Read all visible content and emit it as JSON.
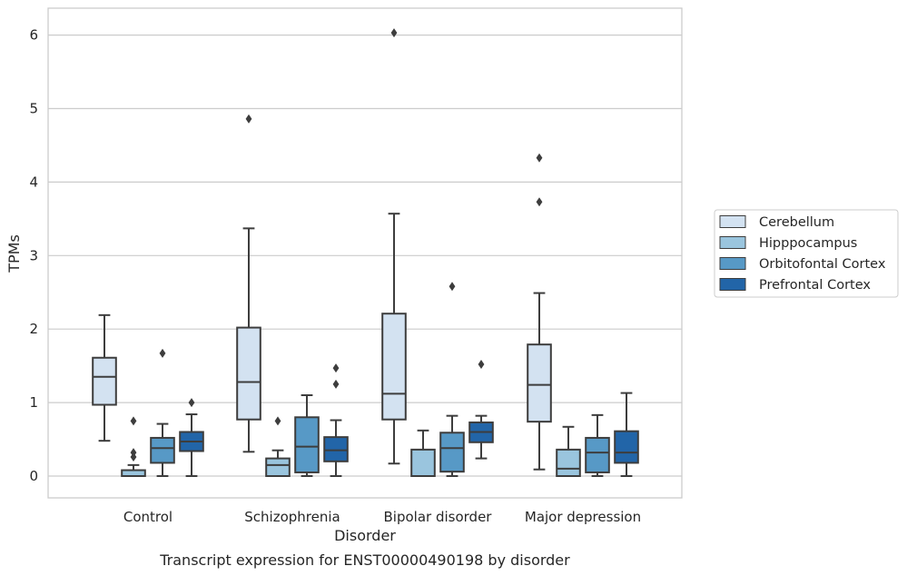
{
  "chart_data": {
    "type": "box",
    "caption": "Transcript expression for ENST00000490198 by disorder",
    "xlabel": "Disorder",
    "ylabel": "TPMs",
    "ylim": [
      -0.3,
      6.35
    ],
    "yticks": [
      0,
      1,
      2,
      3,
      4,
      5,
      6
    ],
    "ytick_labels": [
      "0",
      "1",
      "2",
      "3",
      "4",
      "5",
      "6"
    ],
    "grid": "horizontal",
    "legend_position": "right",
    "categories": [
      "Control",
      "Schizophrenia",
      "Bipolar disorder",
      "Major depression"
    ],
    "series": [
      {
        "name": "Cerebellum",
        "color": "#d3e2f1",
        "boxes": [
          {
            "whislo": 0.48,
            "q1": 0.97,
            "med": 1.35,
            "q3": 1.61,
            "whishi": 2.19,
            "fliers": []
          },
          {
            "whislo": 0.33,
            "q1": 0.77,
            "med": 1.28,
            "q3": 2.02,
            "whishi": 3.37,
            "fliers": [
              4.86
            ]
          },
          {
            "whislo": 0.17,
            "q1": 0.77,
            "med": 1.12,
            "q3": 2.21,
            "whishi": 3.57,
            "fliers": [
              6.03
            ]
          },
          {
            "whislo": 0.09,
            "q1": 0.74,
            "med": 1.24,
            "q3": 1.79,
            "whishi": 2.49,
            "fliers": [
              3.73,
              4.33
            ]
          }
        ]
      },
      {
        "name": "Hipppocampus",
        "color": "#9ac5de",
        "boxes": [
          {
            "whislo": 0.0,
            "q1": 0.0,
            "med": 0.0,
            "q3": 0.08,
            "whishi": 0.15,
            "fliers": [
              0.26,
              0.32,
              0.75
            ]
          },
          {
            "whislo": 0.0,
            "q1": 0.0,
            "med": 0.15,
            "q3": 0.24,
            "whishi": 0.35,
            "fliers": [
              0.75
            ]
          },
          {
            "whislo": 0.0,
            "q1": 0.0,
            "med": 0.0,
            "q3": 0.36,
            "whishi": 0.62,
            "fliers": []
          },
          {
            "whislo": 0.0,
            "q1": 0.0,
            "med": 0.1,
            "q3": 0.36,
            "whishi": 0.67,
            "fliers": []
          }
        ]
      },
      {
        "name": "Orbitofontal Cortex",
        "color": "#5799c6",
        "boxes": [
          {
            "whislo": 0.0,
            "q1": 0.18,
            "med": 0.38,
            "q3": 0.52,
            "whishi": 0.71,
            "fliers": [
              1.67
            ]
          },
          {
            "whislo": 0.0,
            "q1": 0.05,
            "med": 0.4,
            "q3": 0.8,
            "whishi": 1.1,
            "fliers": []
          },
          {
            "whislo": 0.0,
            "q1": 0.06,
            "med": 0.38,
            "q3": 0.59,
            "whishi": 0.82,
            "fliers": [
              2.58
            ]
          },
          {
            "whislo": 0.0,
            "q1": 0.05,
            "med": 0.32,
            "q3": 0.52,
            "whishi": 0.83,
            "fliers": []
          }
        ]
      },
      {
        "name": "Prefrontal Cortex",
        "color": "#2265a8",
        "boxes": [
          {
            "whislo": 0.0,
            "q1": 0.34,
            "med": 0.47,
            "q3": 0.6,
            "whishi": 0.84,
            "fliers": [
              1.0
            ]
          },
          {
            "whislo": 0.0,
            "q1": 0.2,
            "med": 0.35,
            "q3": 0.53,
            "whishi": 0.76,
            "fliers": [
              1.25,
              1.47
            ]
          },
          {
            "whislo": 0.24,
            "q1": 0.46,
            "med": 0.6,
            "q3": 0.73,
            "whishi": 0.82,
            "fliers": [
              1.52
            ]
          },
          {
            "whislo": 0.0,
            "q1": 0.18,
            "med": 0.32,
            "q3": 0.61,
            "whishi": 1.13,
            "fliers": []
          }
        ]
      }
    ]
  }
}
